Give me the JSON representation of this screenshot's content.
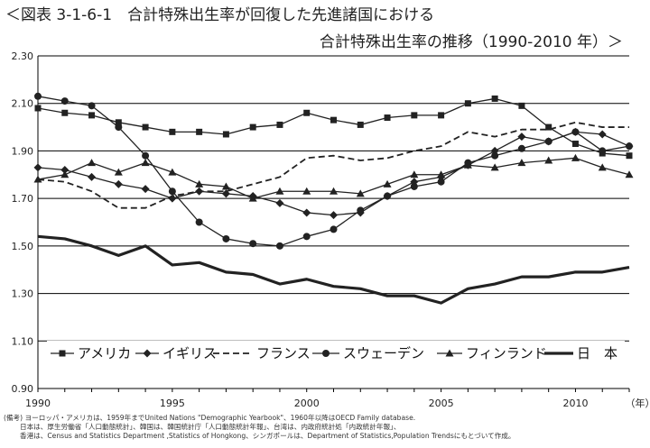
{
  "header": {
    "title_line1": "＜図表 3-1-6-1　合計特殊出生率が回復した先進諸国における",
    "title_line2": "合計特殊出生率の推移（1990-2010 年）＞"
  },
  "chart_data": {
    "type": "line",
    "x": [
      1990,
      1991,
      1992,
      1993,
      1994,
      1995,
      1996,
      1997,
      1998,
      1999,
      2000,
      2001,
      2002,
      2003,
      2004,
      2005,
      2006,
      2007,
      2008,
      2009,
      2010,
      2011,
      2012
    ],
    "xticks": [
      "1990",
      "1995",
      "2000",
      "2005",
      "2010"
    ],
    "x_unit": "（年）",
    "ylim": [
      0.9,
      2.3
    ],
    "yticks": [
      "0.90",
      "1.10",
      "1.30",
      "1.50",
      "1.70",
      "1.90",
      "2.10",
      "2.30"
    ],
    "grid": true,
    "legend_position": "inside-bottom",
    "series": [
      {
        "name": "アメリカ",
        "marker": "square",
        "dash": "solid",
        "values": [
          2.08,
          2.06,
          2.05,
          2.02,
          2.0,
          1.98,
          1.98,
          1.97,
          2.0,
          2.01,
          2.06,
          2.03,
          2.01,
          2.04,
          2.05,
          2.05,
          2.1,
          2.12,
          2.09,
          2.0,
          1.93,
          1.89,
          1.88
        ]
      },
      {
        "name": "イギリス",
        "marker": "diamond",
        "dash": "solid",
        "values": [
          1.83,
          1.82,
          1.79,
          1.76,
          1.74,
          1.7,
          1.73,
          1.72,
          1.71,
          1.68,
          1.64,
          1.63,
          1.64,
          1.71,
          1.77,
          1.79,
          1.84,
          1.9,
          1.96,
          1.94,
          1.98,
          1.97,
          1.92
        ]
      },
      {
        "name": "フランス",
        "marker": "none",
        "dash": "dashed",
        "values": [
          1.78,
          1.77,
          1.73,
          1.66,
          1.66,
          1.71,
          1.73,
          1.73,
          1.76,
          1.79,
          1.87,
          1.88,
          1.86,
          1.87,
          1.9,
          1.92,
          1.98,
          1.96,
          1.99,
          1.99,
          2.02,
          2.0,
          2.0
        ]
      },
      {
        "name": "スウェーデン",
        "marker": "circle",
        "dash": "solid",
        "values": [
          2.13,
          2.11,
          2.09,
          2.0,
          1.88,
          1.73,
          1.6,
          1.53,
          1.51,
          1.5,
          1.54,
          1.57,
          1.65,
          1.71,
          1.75,
          1.77,
          1.85,
          1.88,
          1.91,
          1.94,
          1.98,
          1.9,
          1.92
        ]
      },
      {
        "name": "フィンランド",
        "marker": "triangle",
        "dash": "solid",
        "values": [
          1.78,
          1.8,
          1.85,
          1.81,
          1.85,
          1.81,
          1.76,
          1.75,
          1.7,
          1.73,
          1.73,
          1.73,
          1.72,
          1.76,
          1.8,
          1.8,
          1.84,
          1.83,
          1.85,
          1.86,
          1.87,
          1.83,
          1.8
        ]
      },
      {
        "name": "日　本",
        "marker": "none",
        "dash": "thick",
        "values": [
          1.54,
          1.53,
          1.5,
          1.46,
          1.5,
          1.42,
          1.43,
          1.39,
          1.38,
          1.34,
          1.36,
          1.33,
          1.32,
          1.29,
          1.29,
          1.26,
          1.32,
          1.34,
          1.37,
          1.37,
          1.39,
          1.39,
          1.41
        ]
      }
    ]
  },
  "notes": [
    "(備考) ヨーロッパ・アメリカは、1959年までUnited Nations \"Demographic Yearbook\"、1960年以降はOECD Family database.",
    "日本は、厚生労働省「人口動態統計」、韓国は、韓国統計庁「人口動態統計年報」、台湾は、内政府統計処「内政統計年報」、",
    "香港は、Census and Statistics Department ,Statistics of Hongkong、シンガポールは、Department of Statistics,Population Trendsにもとづいて作成。"
  ]
}
